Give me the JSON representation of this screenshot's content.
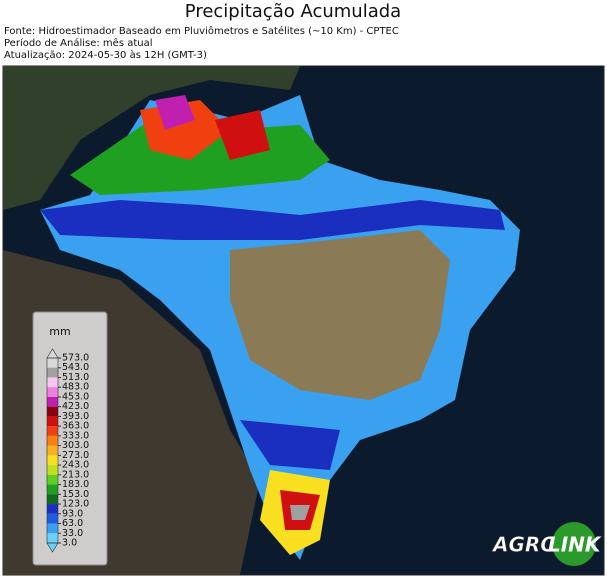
{
  "header": {
    "title": "Precipitação Acumulada",
    "lines": [
      "Fonte: Hidroestimador Baseado em Pluviômetros e Satélites (~10 Km) - CPTEC",
      "Período de Análise: mês atual",
      "Atualização: 2024-05-30 às 12H (GMT-3)"
    ]
  },
  "legend": {
    "unit": "mm",
    "ticks": [
      {
        "value": 573,
        "label": "573.0"
      },
      {
        "value": 543,
        "label": "543.0"
      },
      {
        "value": 513,
        "label": "513.0"
      },
      {
        "value": 483,
        "label": "483.0"
      },
      {
        "value": 453,
        "label": "453.0"
      },
      {
        "value": 423,
        "label": "423.0"
      },
      {
        "value": 393,
        "label": "393.0"
      },
      {
        "value": 363,
        "label": "363.0"
      },
      {
        "value": 333,
        "label": "333.0"
      },
      {
        "value": 303,
        "label": "303.0"
      },
      {
        "value": 273,
        "label": "273.0"
      },
      {
        "value": 243,
        "label": "243.0"
      },
      {
        "value": 213,
        "label": "213.0"
      },
      {
        "value": 183,
        "label": "183.0"
      },
      {
        "value": 153,
        "label": "153.0"
      },
      {
        "value": 123,
        "label": "123.0"
      },
      {
        "value": 93,
        "label": "93.0"
      },
      {
        "value": 63,
        "label": "63.0"
      },
      {
        "value": 33,
        "label": "33.0"
      },
      {
        "value": 3,
        "label": "3.0"
      }
    ],
    "colors": [
      "#d8d8d8",
      "#a0a0a0",
      "#f7c6f0",
      "#f080e0",
      "#c020b0",
      "#8a0010",
      "#d01010",
      "#f04010",
      "#f88010",
      "#f8b020",
      "#f8e020",
      "#c0e020",
      "#60d020",
      "#20a020",
      "#106a20",
      "#1a2fbf",
      "#1e5ce0",
      "#3aa0f0",
      "#6ad0f8"
    ]
  },
  "logo": {
    "part1": "AGRO",
    "part2": "LINK"
  }
}
